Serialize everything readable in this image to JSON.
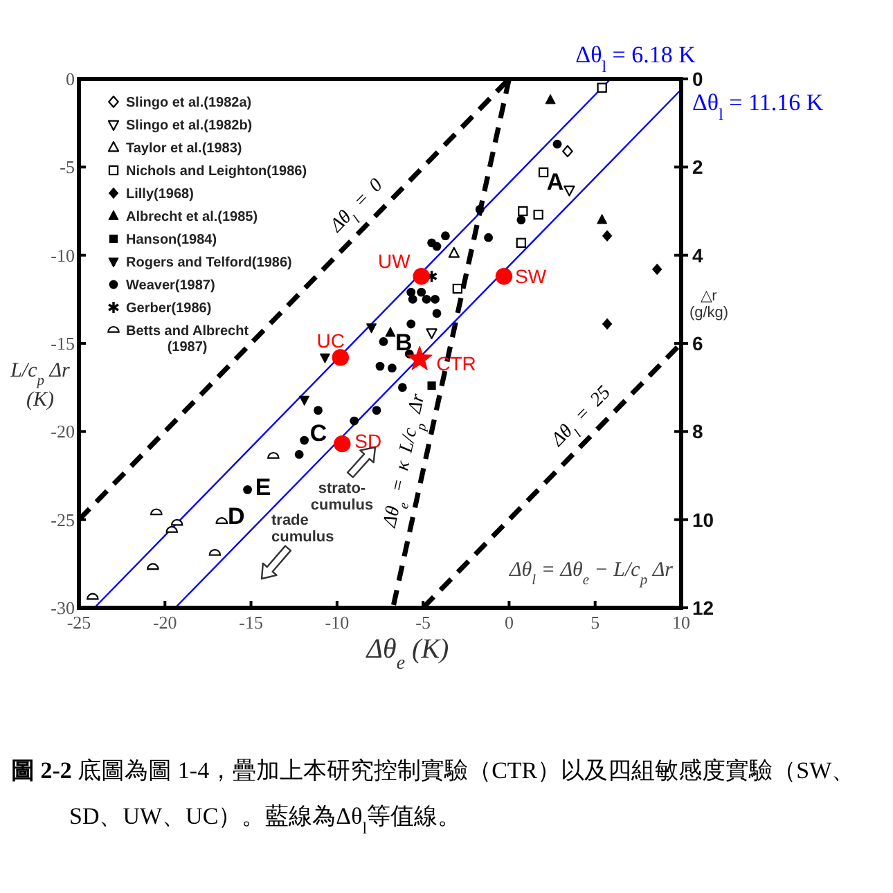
{
  "chart_data": {
    "type": "scatter",
    "xlabel": "Δθ$_{e}$ (K)",
    "ylabel": "L/c$_{p}$ Δr\n(K)",
    "y2label": "△r\n(g/kg)",
    "xlim": [
      -25,
      10
    ],
    "xticks": [
      -25,
      -20,
      -15,
      -10,
      -5,
      0,
      5,
      10
    ],
    "ylim": [
      -30,
      0
    ],
    "yticks": [
      -30,
      -25,
      -20,
      -15,
      -10,
      -5,
      0
    ],
    "y2lim": [
      12,
      0
    ],
    "y2ticks": [
      0,
      2,
      4,
      6,
      8,
      10,
      12
    ],
    "legend": "top left",
    "series": [
      {
        "name": "Slingo et al.(1982a)",
        "marker": "diamond-open",
        "color": "#000000",
        "x": [
          3.4
        ],
        "values": [
          -4.1
        ]
      },
      {
        "name": "Slingo et al.(1982b)",
        "marker": "triangle-down-open",
        "color": "#000000",
        "x": [
          3.5,
          -4.5
        ],
        "values": [
          -6.3,
          -14.4
        ]
      },
      {
        "name": "Taylor et al.(1983)",
        "marker": "triangle-open",
        "color": "#000000",
        "x": [
          -3.2
        ],
        "values": [
          -9.9
        ]
      },
      {
        "name": "Nichols and Leighton(1986)",
        "marker": "square-open",
        "color": "#000000",
        "x": [
          5.4,
          2.0,
          0.8,
          1.7,
          0.7,
          -3.0
        ],
        "values": [
          -0.5,
          -5.3,
          -7.5,
          -7.7,
          -9.3,
          -11.9
        ]
      },
      {
        "name": "Lilly(1968)",
        "marker": "diamond",
        "color": "#000000",
        "x": [
          5.7,
          8.6,
          5.7
        ],
        "values": [
          -8.9,
          -10.8,
          -13.9
        ]
      },
      {
        "name": "Albrecht et al.(1985)",
        "marker": "triangle",
        "color": "#000000",
        "x": [
          2.4,
          5.4,
          -6.9
        ],
        "values": [
          -1.2,
          -8.0,
          -14.4
        ]
      },
      {
        "name": "Hanson(1984)",
        "marker": "square",
        "color": "#000000",
        "x": [
          -4.5
        ],
        "values": [
          -17.4
        ]
      },
      {
        "name": "Rogers and Telford(1986)",
        "marker": "triangle-down",
        "color": "#000000",
        "x": [
          -8.0,
          -10.7,
          -11.9
        ],
        "values": [
          -14.1,
          -15.8,
          -18.2
        ]
      },
      {
        "name": "Weaver(1987)",
        "marker": "circle",
        "color": "#000000",
        "x": [
          2.8,
          0.7,
          -1.7,
          -3.7,
          -4.5,
          -4.2,
          -1.2,
          -5.7,
          -5.1,
          -5.6,
          -4.8,
          -4.3,
          -4.2,
          -5.7,
          -7.3,
          -7.5,
          -6.8,
          -6.2,
          -5.8,
          -11.1,
          -9.0,
          -7.7,
          -11.9,
          -12.2,
          -15.2
        ],
        "values": [
          -3.7,
          -8.0,
          -7.4,
          -8.9,
          -9.3,
          -9.5,
          -9.0,
          -12.1,
          -12.1,
          -12.5,
          -12.5,
          -12.5,
          -13.3,
          -13.9,
          -14.9,
          -16.3,
          -16.4,
          -17.5,
          -15.6,
          -18.8,
          -19.4,
          -18.8,
          -20.5,
          -21.3,
          -23.3
        ]
      },
      {
        "name": "Gerber(1986)",
        "marker": "cross",
        "color": "#000000",
        "x": [
          -4.5
        ],
        "values": [
          -11.2
        ]
      },
      {
        "name": "Betts and Albrecht\n(1987)",
        "marker": "half-circle-open",
        "color": "#000000",
        "x": [
          -13.7,
          -16.7,
          -20.5,
          -19.3,
          -19.6,
          -17.1,
          -20.7,
          -24.2
        ],
        "values": [
          -21.4,
          -25.1,
          -24.6,
          -25.2,
          -25.6,
          -26.9,
          -27.7,
          -29.4
        ]
      },
      {
        "marker": "circle",
        "color": "#ff0000",
        "x": [
          -5.1,
          -0.3,
          -9.8,
          -9.7
        ],
        "values": [
          -11.2,
          -11.2,
          -15.8,
          -20.7
        ]
      },
      {
        "marker": "star",
        "color": "#ff0000",
        "x": [
          -5.2
        ],
        "values": [
          -15.9
        ]
      },
      {
        "type": "line",
        "name": "Δθ$_{l}$ = 0",
        "line_style": "dashed",
        "color": "#000000",
        "x": [
          -25,
          0
        ],
        "values": [
          -25,
          0
        ]
      },
      {
        "type": "line",
        "name": "Δθ$_{e}$ = κ L/c$_{p}$ Δr",
        "line_style": "dashed",
        "color": "#000000",
        "x": [
          0,
          -6.75
        ],
        "values": [
          0,
          -30
        ]
      },
      {
        "type": "line",
        "name": "Δθ$_{l}$ = 25",
        "line_style": "dashed",
        "color": "#000000",
        "x": [
          -5,
          10
        ],
        "values": [
          -30,
          -15
        ]
      },
      {
        "type": "line",
        "name": "Δθ$_{l}$ = 6.18 K",
        "line_style": "solid",
        "color": "#0000ff",
        "x": [
          -24.1,
          5.9
        ],
        "values": [
          -30,
          0
        ]
      },
      {
        "type": "line",
        "name": "Δθ$_{l}$ = 11.16 K",
        "line_style": "solid",
        "color": "#0000ff",
        "x": [
          -19.4,
          10
        ],
        "values": [
          -30,
          -0.6
        ]
      }
    ],
    "annotations": [
      {
        "text": "UW",
        "x": -5.1,
        "y": -11.2
      },
      {
        "text": "SW",
        "x": -0.3,
        "y": -11.2
      },
      {
        "text": "UC",
        "x": -9.8,
        "y": -15.8
      },
      {
        "text": "CTR",
        "x": -5.2,
        "y": -15.9
      },
      {
        "text": "SD",
        "x": -9.7,
        "y": -20.7
      },
      "A",
      "B",
      "C",
      "D",
      "E",
      "strato-\ncumulus",
      "trade\ncumulus",
      "Δθ$_{l}$ = Δθ$_{e}$ − L/c$_{p}$ Δr",
      "**圖 2-2** 底圖為圖 1-4，疊加上本研究控制實驗（CTR）以及四組敏感度實驗（SW、SD、UW、UC）。藍線為Δθ$_{l}$等值線。"
    ]
  }
}
